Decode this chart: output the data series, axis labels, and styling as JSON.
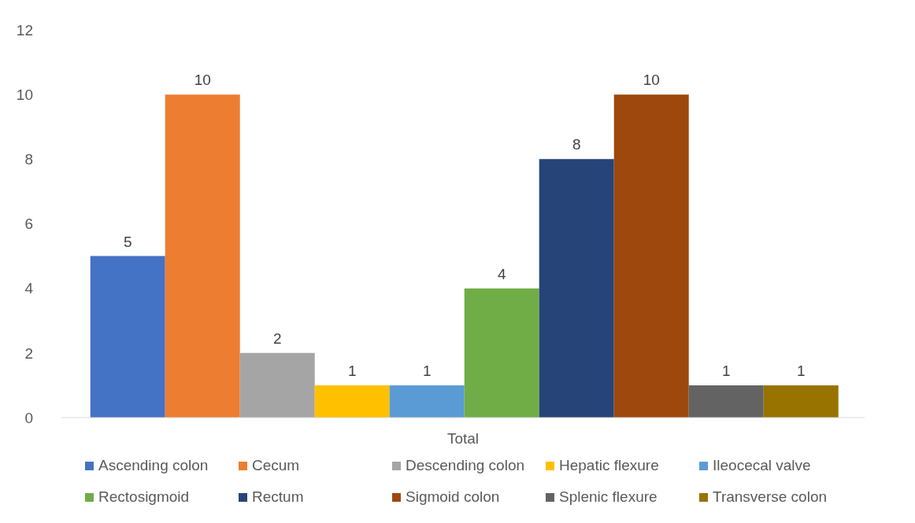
{
  "chart_data": {
    "type": "bar",
    "categories": [
      "Total"
    ],
    "ylim": [
      0,
      12
    ],
    "yticks": [
      0,
      2,
      4,
      6,
      8,
      10,
      12
    ],
    "grid": false,
    "legend": "bottom",
    "data_labels": true,
    "series": [
      {
        "name": "Ascending colon",
        "color": "#4472c4",
        "values": [
          5
        ]
      },
      {
        "name": "Cecum",
        "color": "#ed7d31",
        "values": [
          10
        ]
      },
      {
        "name": "Descending colon",
        "color": "#a5a5a5",
        "values": [
          2
        ]
      },
      {
        "name": "Hepatic flexure",
        "color": "#ffc000",
        "values": [
          1
        ]
      },
      {
        "name": "Ileocecal valve",
        "color": "#5b9bd5",
        "values": [
          1
        ]
      },
      {
        "name": "Rectosigmoid",
        "color": "#70ad47",
        "values": [
          4
        ]
      },
      {
        "name": "Rectum",
        "color": "#264478",
        "values": [
          8
        ]
      },
      {
        "name": "Sigmoid colon",
        "color": "#9e480e",
        "values": [
          10
        ]
      },
      {
        "name": "Splenic flexure",
        "color": "#636363",
        "values": [
          1
        ]
      },
      {
        "name": "Transverse colon",
        "color": "#997300",
        "values": [
          1
        ]
      }
    ]
  }
}
